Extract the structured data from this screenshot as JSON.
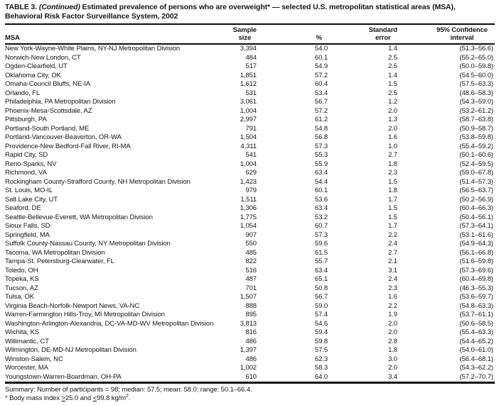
{
  "title": {
    "prefix": "TABLE 3. ",
    "continued": "(Continued)",
    "suffix": " Estimated prevalence of persons who are overweight* — selected U.S. metropolitan statistical areas (MSA),",
    "line2": "Behavioral Risk Factor Surveillance System, 2002"
  },
  "columns": {
    "msa": "MSA",
    "sample": [
      "Sample",
      "size"
    ],
    "pct": "%",
    "se": [
      "Standard",
      "error"
    ],
    "ci": [
      "95% Confidence",
      "interval"
    ]
  },
  "rows": [
    {
      "msa": "New York-Wayne-White Plains, NY-NJ Metropolitan Division",
      "sample": "3,394",
      "pct": "54.0",
      "se": "1.4",
      "ci": "(51.3–56.6)"
    },
    {
      "msa": "Norwich-New London, CT",
      "sample": "484",
      "pct": "60.1",
      "se": "2.5",
      "ci": "(55.2–65.0)"
    },
    {
      "msa": "Ogden-Clearfield, UT",
      "sample": "517",
      "pct": "54.9",
      "se": "2.5",
      "ci": "(50.0–59.8)"
    },
    {
      "msa": "Oklahoma City, OK",
      "sample": "1,851",
      "pct": "57.2",
      "se": "1.4",
      "ci": "(54.5–60.0)"
    },
    {
      "msa": "Omaha-Council Bluffs, NE-IA",
      "sample": "1,612",
      "pct": "60.4",
      "se": "1.5",
      "ci": "(57.5–63.3)"
    },
    {
      "msa": "Orlando, FL",
      "sample": "531",
      "pct": "53.4",
      "se": "2.5",
      "ci": "(48.6–58.3)"
    },
    {
      "msa": "Philadelphia, PA Metropolitan Division",
      "sample": "3,061",
      "pct": "56.7",
      "se": "1.2",
      "ci": "(54.3–59.0)"
    },
    {
      "msa": "Phoenix-Mesa-Scottsdale, AZ",
      "sample": "1,004",
      "pct": "57.2",
      "se": "2.0",
      "ci": "(53.2–61.2)"
    },
    {
      "msa": "Pittsburgh, PA",
      "sample": "2,997",
      "pct": "61.2",
      "se": "1.3",
      "ci": "(58.7–63.8)"
    },
    {
      "msa": "Portland-South Portland, ME",
      "sample": "791",
      "pct": "54.8",
      "se": "2.0",
      "ci": "(50.9–58.7)"
    },
    {
      "msa": "Portland-Vancouver-Beaverton, OR-WA",
      "sample": "1,504",
      "pct": "56.8",
      "se": "1.6",
      "ci": "(53.8–59.8)"
    },
    {
      "msa": "Providence-New Bedford-Fall River, RI-MA",
      "sample": "4,311",
      "pct": "57.3",
      "se": "1.0",
      "ci": "(55.4–59.2)"
    },
    {
      "msa": "Rapid City, SD",
      "sample": "541",
      "pct": "55.3",
      "se": "2.7",
      "ci": "(50.1–60.6)"
    },
    {
      "msa": "Reno-Sparks, NV",
      "sample": "1,004",
      "pct": "55.9",
      "se": "1.8",
      "ci": "(52.4–59.5)"
    },
    {
      "msa": "Richmond, VA",
      "sample": "629",
      "pct": "63.4",
      "se": "2.3",
      "ci": "(59.0–67.8)"
    },
    {
      "msa": "Rockingham County-Strafford County, NH Metropolitan Division",
      "sample": "1,423",
      "pct": "54.4",
      "se": "1.5",
      "ci": "(51.4–57.3)"
    },
    {
      "msa": "St. Louis, MO-IL",
      "sample": "979",
      "pct": "60.1",
      "se": "1.8",
      "ci": "(56.5–63.7)"
    },
    {
      "msa": "Salt Lake City, UT",
      "sample": "1,511",
      "pct": "53.6",
      "se": "1.7",
      "ci": "(50.2–56.9)"
    },
    {
      "msa": "Seaford, DE",
      "sample": "1,306",
      "pct": "63.4",
      "se": "1.5",
      "ci": "(60.4–66.3)"
    },
    {
      "msa": "Seattle-Bellevue-Everett, WA Metropolitan Division",
      "sample": "1,775",
      "pct": "53.2",
      "se": "1.5",
      "ci": "(50.4–56.1)"
    },
    {
      "msa": "Sioux Falls, SD",
      "sample": "1,054",
      "pct": "60.7",
      "se": "1.7",
      "ci": "(57.3–64.1)"
    },
    {
      "msa": "Springfield, MA",
      "sample": "907",
      "pct": "57.3",
      "se": "2.2",
      "ci": "(53.1–61.6)"
    },
    {
      "msa": "Suffolk County-Nassau County, NY Metropolitan Division",
      "sample": "550",
      "pct": "59.6",
      "se": "2.4",
      "ci": "(54.9–64.3)"
    },
    {
      "msa": "Tacoma, WA Metropolitan Division",
      "sample": "485",
      "pct": "61.5",
      "se": "2.7",
      "ci": "(56.1–66.8)"
    },
    {
      "msa": "Tampa-St. Petersburg-Clearwater, FL",
      "sample": "822",
      "pct": "55.7",
      "se": "2.1",
      "ci": "(51.6–59.8)"
    },
    {
      "msa": "Toledo, OH",
      "sample": "516",
      "pct": "63.4",
      "se": "3.1",
      "ci": "(57.3–69.6)"
    },
    {
      "msa": "Topeka, KS",
      "sample": "487",
      "pct": "65.1",
      "se": "2.4",
      "ci": "(60.4–69.8)"
    },
    {
      "msa": "Tucson, AZ",
      "sample": "701",
      "pct": "50.8",
      "se": "2.3",
      "ci": "(46.3–55.3)"
    },
    {
      "msa": "Tulsa, OK",
      "sample": "1,507",
      "pct": "56.7",
      "se": "1.6",
      "ci": "(53.6–59.7)"
    },
    {
      "msa": "Virginia Beach-Norfolk-Newport News, VA-NC",
      "sample": "888",
      "pct": "59.0",
      "se": "2.2",
      "ci": "(54.8–63.3)"
    },
    {
      "msa": "Warren-Farmington Hills-Troy, MI Metropolitan Division",
      "sample": "895",
      "pct": "57.4",
      "se": "1.9",
      "ci": "(53.7–61.1)"
    },
    {
      "msa": "Washington-Arlington-Alexandria, DC-VA-MD-WV Metropolitan Division",
      "sample": "3,813",
      "pct": "54.6",
      "se": "2.0",
      "ci": "(50.6–58.5)"
    },
    {
      "msa": "Wichita, KS",
      "sample": "816",
      "pct": "59.4",
      "se": "2.0",
      "ci": "(55.4–63.3)"
    },
    {
      "msa": "Willimantic, CT",
      "sample": "486",
      "pct": "59.8",
      "se": "2.8",
      "ci": "(54.4–65.2)"
    },
    {
      "msa": "Wilmington, DE-MD-NJ Metropolitan Division",
      "sample": "1,397",
      "pct": "57.5",
      "se": "1.8",
      "ci": "(54.0–61.0)"
    },
    {
      "msa": "Winston-Salem, NC",
      "sample": "486",
      "pct": "62.3",
      "se": "3.0",
      "ci": "(56.4–68.1)"
    },
    {
      "msa": "Worcester, MA",
      "sample": "1,002",
      "pct": "58.3",
      "se": "2.0",
      "ci": "(54.3–62.2)"
    },
    {
      "msa": "Youngstown-Warren-Boardman, OH-PA",
      "sample": "610",
      "pct": "64.0",
      "se": "3.4",
      "ci": "(57.2–70.7)"
    }
  ],
  "summary": "Summary: Number of participants = 98; median: 57.5; mean: 58.0; range: 50.1–66.4.",
  "footnote": {
    "pre": "* Body mass index ",
    "gte": ">",
    "mid1": "25.0 and ",
    "lte": "<",
    "mid2": "99.8 kg/m",
    "sup": "2",
    "end": "."
  }
}
